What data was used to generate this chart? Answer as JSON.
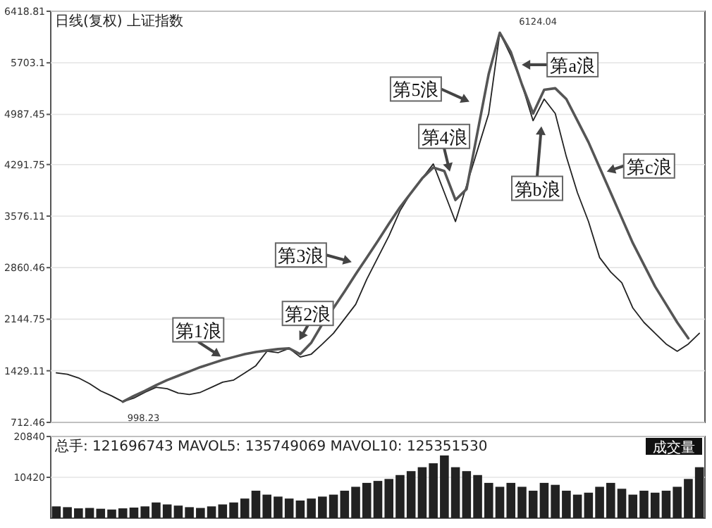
{
  "chart_data": [
    {
      "type": "line",
      "title": "日线(复权) 上证指数",
      "tick_labels": "y",
      "grid": "y",
      "ylim": [
        712.46,
        6418.81
      ],
      "yticks": [
        712.46,
        1429.11,
        2144.75,
        2860.46,
        3576.11,
        4291.75,
        4987.45,
        5703.1,
        6418.81
      ],
      "categories": [
        null,
        null,
        null,
        null,
        null,
        null,
        null,
        null,
        null,
        null,
        null,
        null,
        null,
        null,
        null,
        null,
        null,
        null,
        null,
        null,
        null,
        null,
        null,
        null,
        null,
        null,
        null,
        null,
        null,
        null,
        null,
        null,
        null,
        null,
        null,
        null,
        null,
        null,
        null,
        null,
        null,
        null,
        null,
        null,
        null,
        null,
        null,
        null,
        null,
        null,
        null,
        null,
        null,
        null,
        null,
        null,
        null,
        null,
        null
      ],
      "series": [
        {
          "color": "#222222",
          "values": [
            1400,
            1380,
            1330,
            1250,
            1150,
            1080,
            1000,
            1050,
            1130,
            1200,
            1180,
            1120,
            1100,
            1130,
            1200,
            1270,
            1300,
            1400,
            1500,
            1700,
            1680,
            1740,
            1620,
            1660,
            1800,
            1950,
            2150,
            2350,
            2700,
            3000,
            3300,
            3650,
            3900,
            4100,
            4300,
            3900,
            3500,
            4000,
            4500,
            5000,
            6120,
            5800,
            5400,
            4900,
            5200,
            5000,
            4400,
            3900,
            3500,
            3000,
            2800,
            2650,
            2300,
            2100,
            1950,
            1800,
            1700,
            1800,
            1950
          ]
        },
        {
          "color": "#555555",
          "values": [
            null,
            null,
            null,
            null,
            null,
            null,
            1000,
            1080,
            1150,
            1230,
            1300,
            1360,
            1420,
            1480,
            1530,
            1580,
            1620,
            1660,
            1690,
            1710,
            1730,
            1740,
            1660,
            1820,
            2080,
            2300,
            2530,
            2770,
            3000,
            3230,
            3470,
            3700,
            3900,
            4100,
            4250,
            4200,
            3800,
            3950,
            4750,
            5550,
            6120,
            5850,
            5400,
            5000,
            5330,
            5350,
            5200,
            4900,
            4600,
            4250,
            3900,
            3550,
            3200,
            2900,
            2600,
            2350,
            2100,
            1880,
            null
          ]
        }
      ],
      "annotations": [
        "第1浪",
        "第2浪",
        "第3浪",
        "第4浪",
        "第5浪",
        "第a浪",
        "第b浪",
        "第c浪",
        "6124.04",
        "998.23"
      ]
    },
    {
      "type": "bar",
      "title": "总手: 121696743 MAVOL5: 135749069 MAVOL10: 125351530",
      "tick_labels": "y",
      "grid": "y",
      "ylim": [
        0,
        20840
      ],
      "yticks": [
        10420,
        20840
      ],
      "categories": [
        null,
        null,
        null,
        null,
        null,
        null,
        null,
        null,
        null,
        null,
        null,
        null,
        null,
        null,
        null,
        null,
        null,
        null,
        null,
        null,
        null,
        null,
        null,
        null,
        null,
        null,
        null,
        null,
        null,
        null,
        null,
        null,
        null,
        null,
        null,
        null,
        null,
        null,
        null,
        null,
        null,
        null,
        null,
        null,
        null,
        null,
        null,
        null,
        null,
        null,
        null,
        null,
        null,
        null,
        null,
        null,
        null,
        null,
        null
      ],
      "series": [
        {
          "color": "#222222",
          "values": [
            3000,
            2800,
            2500,
            2600,
            2400,
            2200,
            2500,
            2700,
            3000,
            4000,
            3500,
            3200,
            2800,
            2600,
            3000,
            3500,
            4000,
            5000,
            7000,
            6000,
            5500,
            5000,
            4500,
            5000,
            5500,
            6000,
            7000,
            8000,
            9000,
            9500,
            10000,
            11000,
            12000,
            13000,
            14000,
            16000,
            13000,
            12000,
            11000,
            9000,
            8000,
            9000,
            8000,
            7000,
            9000,
            8500,
            7000,
            6000,
            6500,
            8000,
            9000,
            7500,
            6000,
            7000,
            6500,
            7000,
            8000,
            10000,
            13000
          ]
        }
      ],
      "annotations": [
        "成交量"
      ]
    }
  ]
}
